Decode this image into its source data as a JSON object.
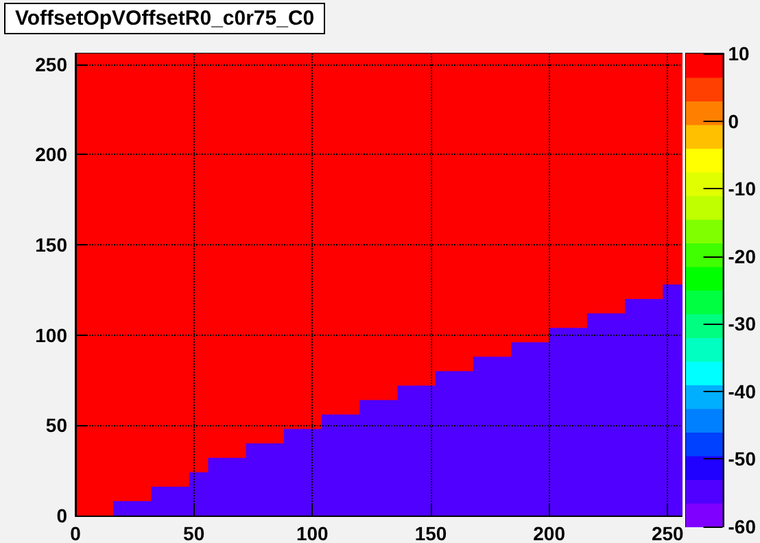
{
  "chart_data": {
    "type": "heatmap",
    "title": "VoffsetOpVOffsetR0_c0r75_C0",
    "xlim": [
      0,
      256
    ],
    "ylim": [
      0,
      256
    ],
    "xticks": [
      0,
      50,
      100,
      150,
      200,
      250
    ],
    "yticks": [
      0,
      50,
      100,
      150,
      200,
      250
    ],
    "clim": [
      -60,
      10
    ],
    "cticks": [
      -60,
      -50,
      -40,
      -30,
      -20,
      -10,
      0,
      10
    ],
    "grid": true,
    "cells": [
      [
        8,
        8,
        8,
        8,
        8,
        8,
        8,
        8,
        8,
        8,
        8,
        8,
        8,
        8,
        8,
        8,
        8,
        8,
        8,
        8,
        8,
        8,
        8,
        8,
        8,
        8,
        8,
        8,
        8,
        8,
        8,
        8
      ],
      [
        8,
        8,
        8,
        8,
        8,
        8,
        8,
        8,
        8,
        8,
        8,
        8,
        8,
        8,
        8,
        8,
        8,
        8,
        8,
        8,
        8,
        8,
        8,
        8,
        8,
        8,
        8,
        8,
        8,
        8,
        8,
        8
      ],
      [
        8,
        8,
        8,
        8,
        8,
        8,
        8,
        8,
        8,
        8,
        8,
        8,
        8,
        8,
        8,
        8,
        8,
        8,
        8,
        8,
        8,
        8,
        8,
        8,
        8,
        8,
        8,
        8,
        8,
        8,
        8,
        8
      ],
      [
        8,
        8,
        8,
        8,
        8,
        8,
        8,
        8,
        8,
        8,
        8,
        8,
        8,
        8,
        8,
        8,
        8,
        8,
        8,
        8,
        8,
        8,
        8,
        8,
        8,
        8,
        8,
        8,
        8,
        8,
        8,
        8
      ],
      [
        8,
        8,
        8,
        8,
        8,
        8,
        8,
        8,
        8,
        8,
        8,
        8,
        8,
        8,
        8,
        8,
        8,
        8,
        8,
        8,
        8,
        8,
        8,
        8,
        8,
        8,
        8,
        8,
        8,
        8,
        8,
        8
      ],
      [
        8,
        8,
        8,
        8,
        8,
        8,
        8,
        8,
        8,
        8,
        8,
        8,
        8,
        8,
        8,
        8,
        8,
        8,
        8,
        8,
        8,
        8,
        8,
        8,
        8,
        8,
        8,
        8,
        8,
        8,
        8,
        8
      ],
      [
        8,
        8,
        8,
        8,
        8,
        8,
        8,
        8,
        8,
        8,
        8,
        8,
        8,
        8,
        8,
        8,
        8,
        8,
        8,
        8,
        8,
        8,
        8,
        8,
        8,
        8,
        8,
        8,
        8,
        8,
        8,
        8
      ],
      [
        8,
        8,
        8,
        8,
        8,
        8,
        8,
        8,
        8,
        8,
        8,
        8,
        8,
        8,
        8,
        8,
        8,
        8,
        8,
        8,
        8,
        8,
        8,
        8,
        8,
        8,
        8,
        8,
        8,
        8,
        8,
        8
      ],
      [
        8,
        8,
        8,
        8,
        8,
        8,
        8,
        8,
        8,
        8,
        8,
        8,
        8,
        8,
        8,
        8,
        8,
        8,
        8,
        8,
        8,
        8,
        8,
        8,
        8,
        8,
        8,
        8,
        8,
        8,
        8,
        8
      ],
      [
        8,
        8,
        8,
        8,
        8,
        8,
        8,
        8,
        8,
        8,
        8,
        8,
        8,
        8,
        8,
        8,
        8,
        8,
        8,
        8,
        8,
        8,
        8,
        8,
        8,
        8,
        8,
        8,
        8,
        8,
        8,
        8
      ],
      [
        8,
        8,
        8,
        8,
        8,
        8,
        8,
        8,
        8,
        8,
        8,
        8,
        8,
        8,
        8,
        8,
        8,
        8,
        8,
        8,
        8,
        8,
        8,
        8,
        8,
        8,
        8,
        8,
        8,
        8,
        8,
        8
      ],
      [
        8,
        8,
        8,
        8,
        8,
        8,
        8,
        8,
        8,
        8,
        8,
        8,
        8,
        8,
        8,
        8,
        8,
        8,
        8,
        8,
        8,
        8,
        8,
        8,
        8,
        8,
        8,
        8,
        8,
        8,
        8,
        8
      ],
      [
        8,
        8,
        8,
        8,
        8,
        8,
        8,
        8,
        8,
        8,
        8,
        8,
        8,
        8,
        8,
        8,
        8,
        8,
        8,
        8,
        8,
        8,
        8,
        8,
        8,
        8,
        8,
        8,
        8,
        8,
        8,
        8
      ],
      [
        8,
        8,
        8,
        8,
        8,
        8,
        8,
        8,
        8,
        8,
        8,
        8,
        8,
        8,
        8,
        8,
        8,
        8,
        8,
        8,
        8,
        8,
        8,
        8,
        8,
        8,
        8,
        8,
        8,
        8,
        8,
        8
      ],
      [
        8,
        8,
        8,
        8,
        8,
        8,
        8,
        8,
        8,
        8,
        8,
        8,
        8,
        8,
        8,
        8,
        8,
        8,
        8,
        8,
        8,
        8,
        8,
        8,
        8,
        8,
        8,
        8,
        8,
        8,
        8,
        8
      ],
      [
        8,
        8,
        8,
        8,
        8,
        8,
        8,
        8,
        8,
        8,
        8,
        8,
        8,
        8,
        8,
        8,
        8,
        8,
        8,
        8,
        8,
        8,
        8,
        8,
        8,
        8,
        8,
        8,
        8,
        8,
        8,
        8
      ],
      [
        8,
        8,
        8,
        8,
        8,
        8,
        8,
        8,
        8,
        8,
        8,
        8,
        8,
        8,
        8,
        8,
        8,
        8,
        8,
        8,
        8,
        8,
        8,
        8,
        8,
        8,
        8,
        8,
        8,
        8,
        8,
        -55
      ],
      [
        8,
        8,
        8,
        8,
        8,
        8,
        8,
        8,
        8,
        8,
        8,
        8,
        8,
        8,
        8,
        8,
        8,
        8,
        8,
        8,
        8,
        8,
        8,
        8,
        8,
        8,
        8,
        8,
        8,
        -55,
        -55,
        -55
      ],
      [
        8,
        8,
        8,
        8,
        8,
        8,
        8,
        8,
        8,
        8,
        8,
        8,
        8,
        8,
        8,
        8,
        8,
        8,
        8,
        8,
        8,
        8,
        8,
        8,
        8,
        8,
        8,
        -55,
        -55,
        -55,
        -55,
        -55
      ],
      [
        8,
        8,
        8,
        8,
        8,
        8,
        8,
        8,
        8,
        8,
        8,
        8,
        8,
        8,
        8,
        8,
        8,
        8,
        8,
        8,
        8,
        8,
        8,
        8,
        8,
        -55,
        -55,
        -55,
        -55,
        -55,
        -55,
        -55
      ],
      [
        8,
        8,
        8,
        8,
        8,
        8,
        8,
        8,
        8,
        8,
        8,
        8,
        8,
        8,
        8,
        8,
        8,
        8,
        8,
        8,
        8,
        8,
        8,
        -55,
        -55,
        -55,
        -55,
        -55,
        -55,
        -55,
        -55,
        -55
      ],
      [
        8,
        8,
        8,
        8,
        8,
        8,
        8,
        8,
        8,
        8,
        8,
        8,
        8,
        8,
        8,
        8,
        8,
        8,
        8,
        8,
        8,
        -55,
        -55,
        -55,
        -55,
        -55,
        -55,
        -55,
        -55,
        -55,
        -55,
        -55
      ],
      [
        8,
        8,
        8,
        8,
        8,
        8,
        8,
        8,
        8,
        8,
        8,
        8,
        8,
        8,
        8,
        8,
        8,
        8,
        8,
        -55,
        -55,
        -55,
        -55,
        -55,
        -55,
        -55,
        -55,
        -55,
        -55,
        -55,
        -55,
        -55
      ],
      [
        8,
        8,
        8,
        8,
        8,
        8,
        8,
        8,
        8,
        8,
        8,
        8,
        8,
        8,
        8,
        8,
        8,
        -55,
        -55,
        -55,
        -55,
        -55,
        -55,
        -55,
        -55,
        -55,
        -55,
        -55,
        -55,
        -55,
        -55,
        -55
      ],
      [
        8,
        8,
        8,
        8,
        8,
        8,
        8,
        8,
        8,
        8,
        8,
        8,
        8,
        8,
        8,
        -55,
        -55,
        -55,
        -55,
        -55,
        -55,
        -55,
        -55,
        -55,
        -55,
        -55,
        -55,
        -55,
        -55,
        -55,
        -55,
        -55
      ],
      [
        8,
        8,
        8,
        8,
        8,
        8,
        8,
        8,
        8,
        8,
        8,
        8,
        8,
        -55,
        -55,
        -55,
        -55,
        -55,
        -55,
        -55,
        -55,
        -55,
        -55,
        -55,
        -55,
        -55,
        -55,
        -55,
        -55,
        -55,
        -55,
        -55
      ],
      [
        8,
        8,
        8,
        8,
        8,
        8,
        8,
        8,
        8,
        8,
        8,
        -55,
        -55,
        -55,
        -55,
        -55,
        -55,
        -55,
        -55,
        -55,
        -55,
        -55,
        -55,
        -55,
        -55,
        -55,
        -55,
        -55,
        -55,
        -55,
        -55,
        -55
      ],
      [
        8,
        8,
        8,
        8,
        8,
        8,
        8,
        8,
        8,
        -55,
        -55,
        -55,
        -55,
        -55,
        -55,
        -55,
        -55,
        -55,
        -55,
        -55,
        -55,
        -55,
        -55,
        -55,
        -55,
        -55,
        -55,
        -55,
        -55,
        -55,
        -55,
        -55
      ],
      [
        8,
        8,
        8,
        8,
        8,
        8,
        8,
        -55,
        -55,
        -55,
        -55,
        -55,
        -55,
        -55,
        -55,
        -55,
        -55,
        -55,
        -55,
        -55,
        -55,
        -55,
        -55,
        -55,
        -55,
        -55,
        -55,
        -55,
        -55,
        -55,
        -55,
        -55
      ],
      [
        8,
        8,
        8,
        8,
        8,
        8,
        -55,
        -55,
        -55,
        -55,
        -55,
        -55,
        -55,
        -55,
        -55,
        -55,
        -55,
        -55,
        -55,
        -55,
        -55,
        -55,
        -55,
        -55,
        -55,
        -55,
        -55,
        -55,
        -55,
        -55,
        -55,
        -55
      ],
      [
        8,
        8,
        8,
        8,
        -55,
        -55,
        -55,
        -55,
        -55,
        -55,
        -55,
        -55,
        -55,
        -55,
        -55,
        -55,
        -55,
        -55,
        -55,
        -55,
        -55,
        -55,
        -55,
        -55,
        -55,
        -55,
        -55,
        -55,
        -55,
        -55,
        -55,
        -55
      ],
      [
        8,
        8,
        -55,
        -55,
        -55,
        -55,
        -55,
        -55,
        -55,
        -55,
        -55,
        -55,
        -55,
        -55,
        -55,
        -55,
        -55,
        -55,
        -55,
        -55,
        -55,
        -55,
        -55,
        -55,
        -55,
        -55,
        -55,
        -55,
        -55,
        -55,
        -55,
        -55
      ]
    ]
  }
}
